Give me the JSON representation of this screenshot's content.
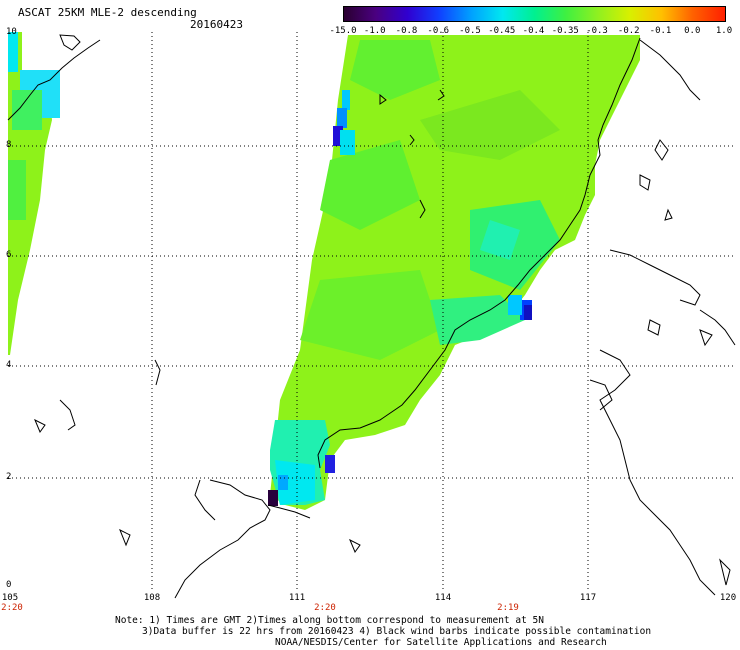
{
  "header": {
    "title": "ASCAT 25KM MLE-2 descending",
    "date": "20160423"
  },
  "colorbar": {
    "labels": [
      "-15.0",
      "-1.0",
      "-0.8",
      "-0.6",
      "-0.5",
      "-0.45",
      "-0.4",
      "-0.35",
      "-0.3",
      "-0.2",
      "-0.1",
      "0.0",
      "1.0"
    ],
    "colors": [
      "#2a0030",
      "#4a0080",
      "#3000d0",
      "#1040ff",
      "#00a0ff",
      "#00e8f0",
      "#00f090",
      "#40f040",
      "#90f020",
      "#d8f000",
      "#ffc000",
      "#ff6000",
      "#ff2000"
    ]
  },
  "axes": {
    "y_ticks": [
      "10",
      "8",
      "6",
      "4",
      "2",
      "0"
    ],
    "x_ticks": [
      "105",
      "108",
      "111",
      "114",
      "117",
      "120"
    ],
    "time_labels": [
      "2:20",
      "2:20",
      "2:19"
    ]
  },
  "notes": {
    "line1": "Note: 1) Times are GMT 2)Times along bottom correspond to measurement at 5N",
    "line2": "3)Data buffer is 22 hrs from 20160423 4) Black wind barbs indicate possible contamination",
    "line3": "NOAA/NESDIS/Center for Satellite Applications and Research"
  }
}
